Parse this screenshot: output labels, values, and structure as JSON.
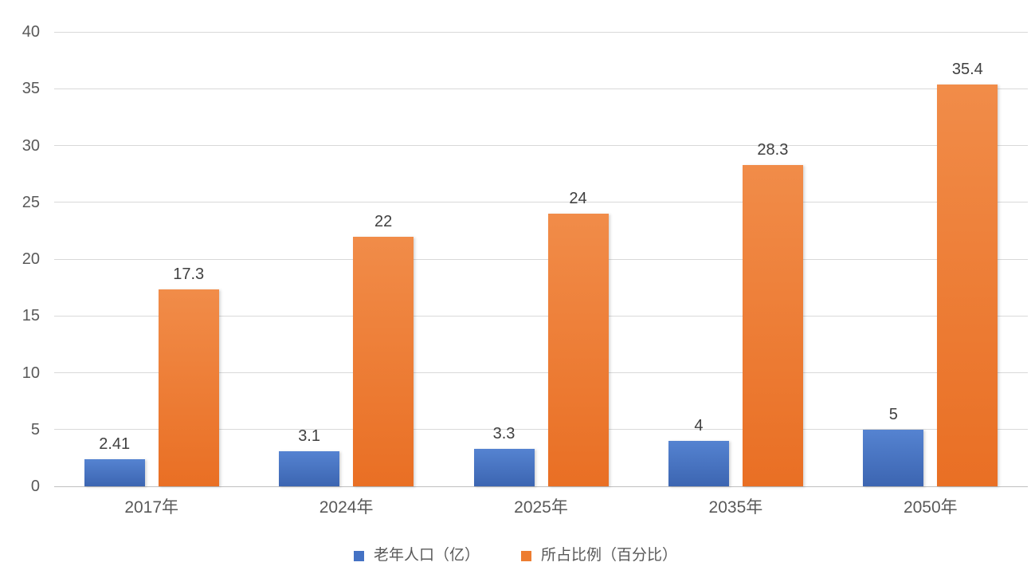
{
  "chart_data": {
    "type": "bar",
    "title": "",
    "xlabel": "",
    "ylabel": "",
    "categories": [
      "2017年",
      "2024年",
      "2025年",
      "2035年",
      "2050年"
    ],
    "series": [
      {
        "name": "老年人口（亿）",
        "color": "#4472C4",
        "gradient_top": "#5583D1",
        "gradient_bottom": "#3C65B1",
        "values": [
          2.41,
          3.1,
          3.3,
          4,
          5
        ],
        "labels": [
          "2.41",
          "3.1",
          "3.3",
          "4",
          "5"
        ]
      },
      {
        "name": "所占比例（百分比）",
        "color": "#ED7D31",
        "gradient_top": "#F18C49",
        "gradient_bottom": "#E96F24",
        "values": [
          17.3,
          22,
          24,
          28.3,
          35.4
        ],
        "labels": [
          "17.3",
          "22",
          "24",
          "28.3",
          "35.4"
        ]
      }
    ],
    "ylim": [
      0,
      40
    ],
    "yticks": [
      0,
      5,
      10,
      15,
      20,
      25,
      30,
      35,
      40
    ],
    "grid": true,
    "legend_position": "bottom"
  },
  "colors": {
    "background": "#FFFFFF",
    "gridline": "#D9D9D9",
    "axis_line": "#BFBFBF",
    "tick_label": "#595959",
    "data_label": "#404040",
    "legend_label": "#595959"
  }
}
